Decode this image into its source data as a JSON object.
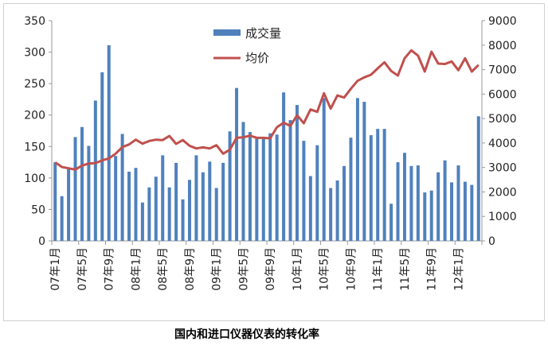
{
  "chart_data": {
    "type": "bar+line",
    "title": "",
    "caption": "国内和进口仪器仪表的转化率",
    "categories_start": "07年1月",
    "x_tick_labels": [
      "07年1月",
      "07年5月",
      "07年9月",
      "08年1月",
      "08年5月",
      "08年9月",
      "09年1月",
      "09年5月",
      "09年9月",
      "10年1月",
      "10年5月",
      "10年9月",
      "11年1月",
      "11年5月",
      "11年9月",
      "12年1月"
    ],
    "x_tick_every": 4,
    "y_left": {
      "lim": [
        0,
        350
      ],
      "ticks": [
        0,
        50,
        100,
        150,
        200,
        250,
        300,
        350
      ]
    },
    "y_right": {
      "lim": [
        0,
        9000
      ],
      "ticks": [
        0,
        1000,
        2000,
        3000,
        4000,
        5000,
        6000,
        7000,
        8000,
        9000
      ]
    },
    "grid": false,
    "legend_position": "top-center",
    "series": [
      {
        "name": "成交量",
        "type": "bar",
        "axis": "left",
        "color": "#4f81bd",
        "values": [
          125,
          71,
          115,
          165,
          181,
          151,
          223,
          268,
          311,
          135,
          170,
          110,
          116,
          61,
          85,
          102,
          136,
          85,
          124,
          66,
          97,
          136,
          109,
          126,
          84,
          124,
          174,
          243,
          189,
          173,
          164,
          162,
          171,
          169,
          236,
          192,
          216,
          159,
          103,
          152,
          227,
          84,
          96,
          119,
          164,
          227,
          221,
          168,
          178,
          178,
          59,
          125,
          140,
          119,
          120,
          77,
          80,
          109,
          128,
          93,
          120,
          94,
          89,
          198
        ]
      },
      {
        "name": "均价",
        "type": "line",
        "axis": "right",
        "color": "#c0504d",
        "values": [
          3207,
          3020,
          2966,
          2914,
          3077,
          3161,
          3180,
          3291,
          3369,
          3564,
          3834,
          3941,
          4136,
          3974,
          4083,
          4136,
          4120,
          4288,
          3964,
          4120,
          3888,
          3779,
          3823,
          3779,
          3910,
          3564,
          3726,
          4213,
          4234,
          4300,
          4213,
          4213,
          4191,
          4646,
          4830,
          4700,
          5133,
          4808,
          5371,
          5274,
          6033,
          5404,
          5945,
          5858,
          6216,
          6541,
          6683,
          6790,
          7050,
          7300,
          6943,
          6758,
          7462,
          7787,
          7570,
          6920,
          7732,
          7245,
          7230,
          7332,
          6975,
          7462,
          6920,
          7190
        ]
      }
    ]
  }
}
